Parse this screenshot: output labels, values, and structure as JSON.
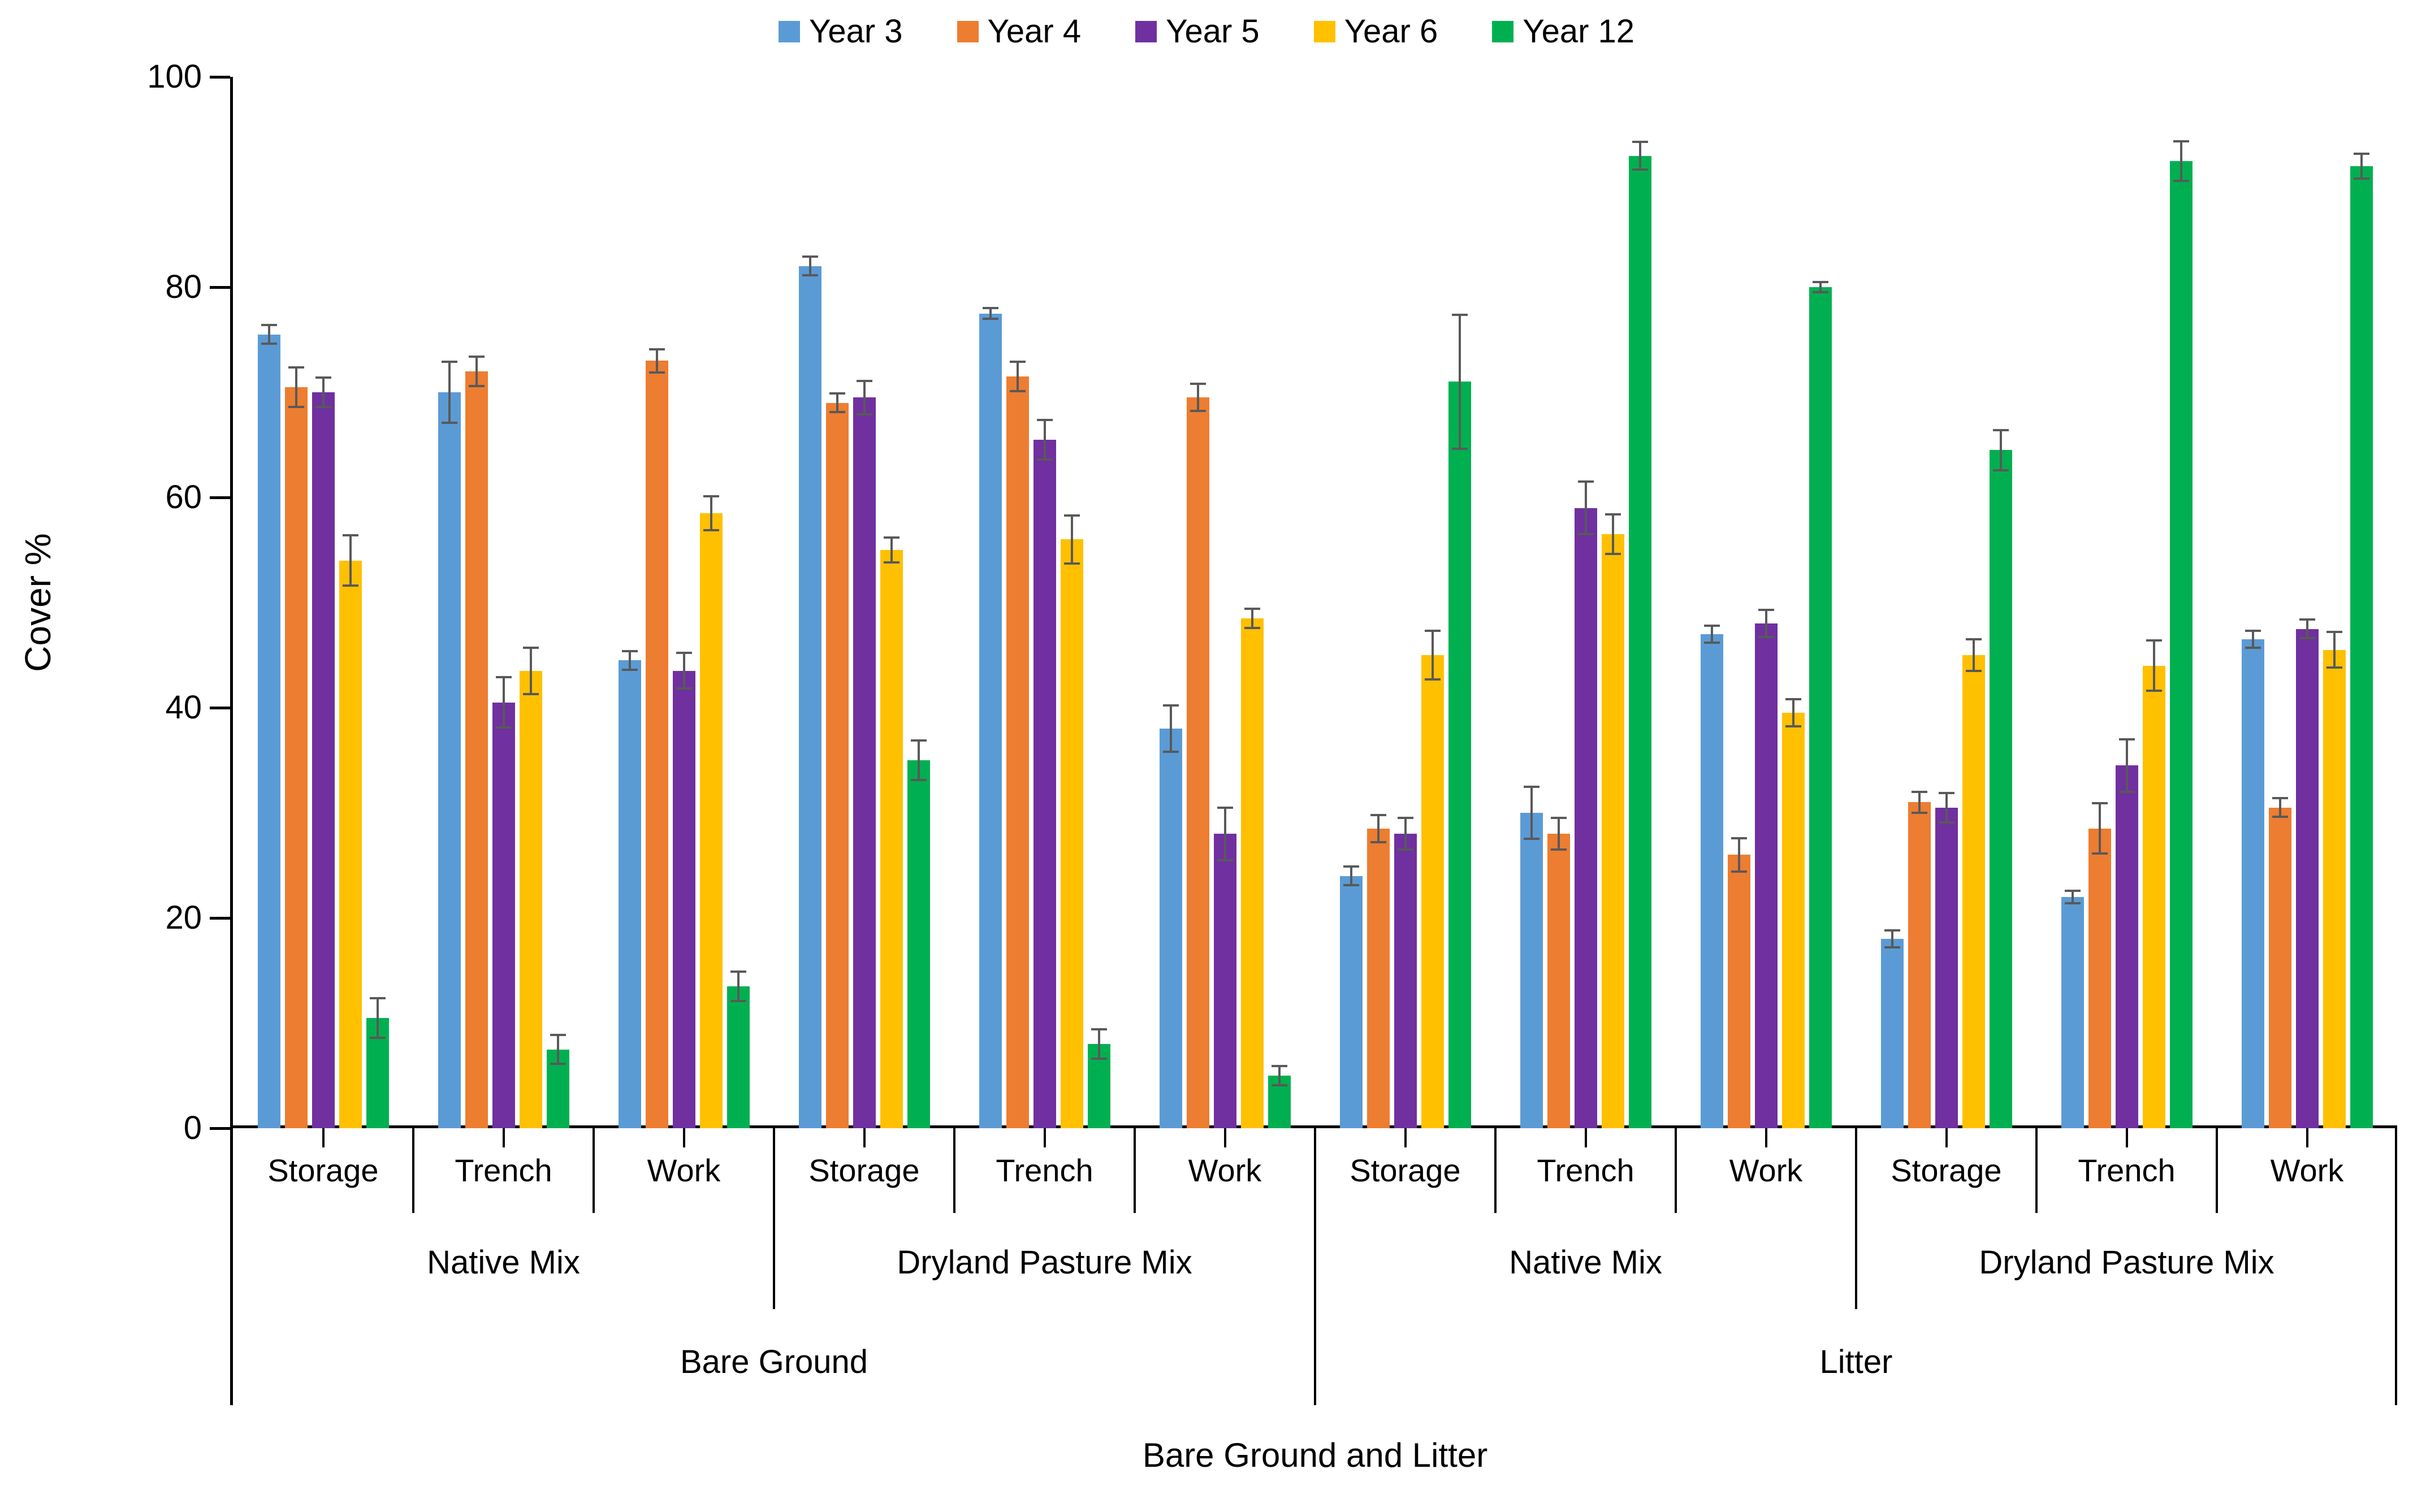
{
  "chart_data": {
    "type": "bar",
    "title": "",
    "ylabel": "Cover %",
    "xlabel": "Bare Ground and Litter",
    "ylim": [
      0,
      100
    ],
    "yticks": [
      0,
      20,
      40,
      60,
      80,
      100
    ],
    "grid": false,
    "legend_position": "top",
    "error_bar_color": "#595959",
    "axis_color": "#000000",
    "series": [
      {
        "name": "Year 3",
        "color": "#5B9BD5"
      },
      {
        "name": "Year 4",
        "color": "#ED7D31"
      },
      {
        "name": "Year 5",
        "color": "#7030A0"
      },
      {
        "name": "Year 6",
        "color": "#FFC000"
      },
      {
        "name": "Year 12",
        "color": "#00B050"
      }
    ],
    "groups": [
      {
        "zone": "Storage",
        "mix": "Native Mix",
        "ground": "Bare Ground",
        "values": [
          75.5,
          70.5,
          70.0,
          54.0,
          10.5
        ],
        "errors": [
          1.0,
          2.0,
          1.5,
          2.5,
          2.0
        ]
      },
      {
        "zone": "Trench",
        "mix": "Native Mix",
        "ground": "Bare Ground",
        "values": [
          70.0,
          72.0,
          40.5,
          43.5,
          7.5
        ],
        "errors": [
          3.0,
          1.5,
          2.5,
          2.3,
          1.5
        ]
      },
      {
        "zone": "Work",
        "mix": "Native Mix",
        "ground": "Bare Ground",
        "values": [
          44.5,
          73.0,
          43.5,
          58.5,
          13.5
        ],
        "errors": [
          1.0,
          1.2,
          1.8,
          1.7,
          1.5
        ]
      },
      {
        "zone": "Storage",
        "mix": "Dryland Pasture Mix",
        "ground": "Bare Ground",
        "values": [
          82.0,
          69.0,
          69.5,
          55.0,
          35.0
        ],
        "errors": [
          1.0,
          1.0,
          1.7,
          1.3,
          2.0
        ]
      },
      {
        "zone": "Trench",
        "mix": "Dryland Pasture Mix",
        "ground": "Bare Ground",
        "values": [
          77.5,
          71.5,
          65.5,
          56.0,
          8.0
        ],
        "errors": [
          0.6,
          1.5,
          2.0,
          2.4,
          1.5
        ]
      },
      {
        "zone": "Work",
        "mix": "Dryland Pasture Mix",
        "ground": "Bare Ground",
        "values": [
          38.0,
          69.5,
          28.0,
          48.5,
          5.0
        ],
        "errors": [
          2.3,
          1.4,
          2.6,
          1.0,
          1.0
        ]
      },
      {
        "zone": "Storage",
        "mix": "Native Mix",
        "ground": "Litter",
        "values": [
          24.0,
          28.5,
          28.0,
          45.0,
          71.0
        ],
        "errors": [
          1.0,
          1.4,
          1.6,
          2.4,
          6.5
        ]
      },
      {
        "zone": "Trench",
        "mix": "Native Mix",
        "ground": "Litter",
        "values": [
          30.0,
          28.0,
          59.0,
          56.5,
          92.5
        ],
        "errors": [
          2.6,
          1.6,
          2.6,
          2.0,
          1.4
        ]
      },
      {
        "zone": "Work",
        "mix": "Native Mix",
        "ground": "Litter",
        "values": [
          47.0,
          26.0,
          48.0,
          39.5,
          80.0
        ],
        "errors": [
          0.9,
          1.7,
          1.4,
          1.4,
          0.6
        ]
      },
      {
        "zone": "Storage",
        "mix": "Dryland Pasture Mix",
        "ground": "Litter",
        "values": [
          18.0,
          31.0,
          30.5,
          45.0,
          64.5
        ],
        "errors": [
          0.9,
          1.1,
          1.5,
          1.6,
          2.0
        ]
      },
      {
        "zone": "Trench",
        "mix": "Dryland Pasture Mix",
        "ground": "Litter",
        "values": [
          22.0,
          28.5,
          34.5,
          44.0,
          92.0
        ],
        "errors": [
          0.7,
          2.5,
          2.6,
          2.5,
          2.0
        ]
      },
      {
        "zone": "Work",
        "mix": "Dryland Pasture Mix",
        "ground": "Litter",
        "values": [
          46.5,
          30.5,
          47.5,
          45.5,
          91.5
        ],
        "errors": [
          0.9,
          1.0,
          1.0,
          1.8,
          1.3
        ]
      }
    ],
    "level2_spans": [
      {
        "label": "Native Mix",
        "span": 3
      },
      {
        "label": "Dryland Pasture Mix",
        "span": 3
      },
      {
        "label": "Native Mix",
        "span": 3
      },
      {
        "label": "Dryland Pasture Mix",
        "span": 3
      }
    ],
    "level3_spans": [
      {
        "label": "Bare Ground",
        "span": 6
      },
      {
        "label": "Litter",
        "span": 6
      }
    ]
  }
}
